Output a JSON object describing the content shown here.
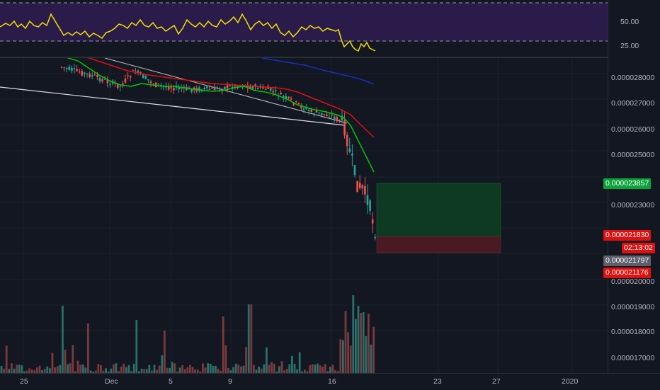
{
  "rsi": {
    "levels": [
      "50.00",
      "25.00"
    ]
  },
  "price_axis": {
    "ticks": [
      "0.000028000",
      "0.000027000",
      "0.000026000",
      "0.000025000",
      "0.000023000",
      "0.000020000",
      "0.000019000",
      "0.000018000",
      "0.000017000"
    ]
  },
  "tags": {
    "target": "0.000023857",
    "current": "0.000021830",
    "countdown": "02:13:02",
    "entry": "0.000021797",
    "stop": "0.000021176"
  },
  "time_axis": {
    "labels": [
      "25",
      "Dec",
      "5",
      "9",
      "16",
      "23",
      "27",
      "2020"
    ]
  },
  "colors": {
    "background": "#131722",
    "bull": "#26a69a",
    "bear": "#ef5350",
    "ema_fast": "#00c800",
    "ema_slow": "#e01010",
    "ema_long": "#1a2fc0",
    "rsi_line": "#f0e000",
    "rsi_band": "#2a1b4a",
    "target_zone": "#0f3a22",
    "stop_zone": "#4a1a22"
  }
}
